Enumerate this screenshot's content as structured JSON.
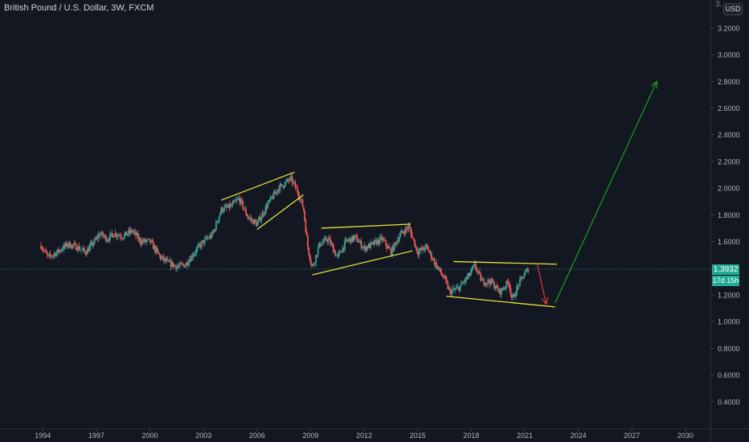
{
  "header": {
    "title": "British Pound / U.S. Dollar, 3W, FXCM",
    "currency_button": "USD"
  },
  "price_axis": {
    "top_clipped_label": "3.",
    "current_price": "1.3932",
    "countdown": "17d 15h"
  },
  "colors": {
    "background": "#131722",
    "up": "#26a69a",
    "down": "#ef5350",
    "channel": "#e8e337",
    "projection_up": "#1aa31a",
    "projection_down": "#e53935",
    "price_line": "#26a69a",
    "axis_text": "#b2b5be"
  },
  "chart_data": {
    "type": "candlestick",
    "symbol": "British Pound / U.S. Dollar",
    "interval": "3W",
    "source": "FXCM",
    "x_tick_labels": [
      "1994",
      "1997",
      "2000",
      "2003",
      "2006",
      "2009",
      "2012",
      "2015",
      "2018",
      "2021",
      "2024",
      "2027",
      "2030"
    ],
    "x_ticks": [
      1994,
      1997,
      2000,
      2003,
      2006,
      2009,
      2012,
      2015,
      2018,
      2021,
      2024,
      2027,
      2030
    ],
    "y_tick_labels": [
      "3.2000",
      "3.0000",
      "2.8000",
      "2.6000",
      "2.4000",
      "2.2000",
      "2.0000",
      "1.8000",
      "1.6000",
      "1.2000",
      "1.0000",
      "0.8000",
      "0.6000",
      "0.4000"
    ],
    "y_ticks": [
      3.2,
      3.0,
      2.8,
      2.6,
      2.4,
      2.2,
      2.0,
      1.8,
      1.6,
      1.2,
      1.0,
      0.8,
      0.6,
      0.4
    ],
    "xlim": [
      1991.6,
      2031.4
    ],
    "ylim": [
      0.2,
      3.41
    ],
    "last_price": 1.3932,
    "price_path": [
      [
        1993.9,
        1.57
      ],
      [
        1994.3,
        1.48
      ],
      [
        1994.8,
        1.52
      ],
      [
        1995.4,
        1.58
      ],
      [
        1995.9,
        1.56
      ],
      [
        1996.4,
        1.52
      ],
      [
        1996.9,
        1.6
      ],
      [
        1997.2,
        1.66
      ],
      [
        1997.6,
        1.62
      ],
      [
        1998.0,
        1.66
      ],
      [
        1998.5,
        1.64
      ],
      [
        1999.0,
        1.68
      ],
      [
        1999.5,
        1.6
      ],
      [
        2000.0,
        1.6
      ],
      [
        2000.6,
        1.48
      ],
      [
        2001.0,
        1.44
      ],
      [
        2001.6,
        1.41
      ],
      [
        2002.0,
        1.43
      ],
      [
        2002.5,
        1.52
      ],
      [
        2003.0,
        1.6
      ],
      [
        2003.5,
        1.65
      ],
      [
        2004.0,
        1.84
      ],
      [
        2004.5,
        1.86
      ],
      [
        2005.0,
        1.92
      ],
      [
        2005.5,
        1.78
      ],
      [
        2006.0,
        1.73
      ],
      [
        2006.6,
        1.88
      ],
      [
        2007.2,
        2.0
      ],
      [
        2007.9,
        2.07
      ],
      [
        2008.3,
        1.97
      ],
      [
        2008.6,
        1.85
      ],
      [
        2008.85,
        1.55
      ],
      [
        2009.1,
        1.4
      ],
      [
        2009.5,
        1.58
      ],
      [
        2010.0,
        1.62
      ],
      [
        2010.5,
        1.48
      ],
      [
        2011.0,
        1.6
      ],
      [
        2011.5,
        1.63
      ],
      [
        2012.0,
        1.55
      ],
      [
        2012.5,
        1.58
      ],
      [
        2013.0,
        1.62
      ],
      [
        2013.5,
        1.52
      ],
      [
        2014.0,
        1.65
      ],
      [
        2014.5,
        1.71
      ],
      [
        2015.0,
        1.52
      ],
      [
        2015.5,
        1.56
      ],
      [
        2016.0,
        1.43
      ],
      [
        2016.5,
        1.32
      ],
      [
        2016.8,
        1.22
      ],
      [
        2017.3,
        1.25
      ],
      [
        2017.9,
        1.35
      ],
      [
        2018.2,
        1.42
      ],
      [
        2018.6,
        1.3
      ],
      [
        2019.1,
        1.3
      ],
      [
        2019.6,
        1.22
      ],
      [
        2020.1,
        1.3
      ],
      [
        2020.3,
        1.16
      ],
      [
        2020.7,
        1.29
      ],
      [
        2021.0,
        1.36
      ],
      [
        2021.2,
        1.3932
      ]
    ],
    "trendlines": [
      {
        "name": "channel-2004-upper",
        "color": "yellow",
        "points": [
          [
            2004.0,
            1.91
          ],
          [
            2008.1,
            2.12
          ]
        ]
      },
      {
        "name": "channel-2004-lower",
        "color": "yellow",
        "points": [
          [
            2006.0,
            1.69
          ],
          [
            2008.6,
            1.95
          ]
        ]
      },
      {
        "name": "channel-2009-upper",
        "color": "yellow",
        "points": [
          [
            2009.6,
            1.7
          ],
          [
            2014.6,
            1.73
          ]
        ]
      },
      {
        "name": "channel-2009-lower",
        "color": "yellow",
        "points": [
          [
            2009.1,
            1.35
          ],
          [
            2014.7,
            1.53
          ]
        ]
      },
      {
        "name": "channel-2016-upper",
        "color": "yellow",
        "points": [
          [
            2017.0,
            1.45
          ],
          [
            2022.8,
            1.43
          ]
        ]
      },
      {
        "name": "channel-2016-lower",
        "color": "yellow",
        "points": [
          [
            2016.6,
            1.19
          ],
          [
            2022.7,
            1.11
          ]
        ]
      }
    ],
    "arrows": [
      {
        "name": "projection-down",
        "color": "red",
        "points": [
          [
            2021.7,
            1.43
          ],
          [
            2022.2,
            1.13
          ]
        ]
      },
      {
        "name": "projection-up",
        "color": "green",
        "points": [
          [
            2022.7,
            1.14
          ],
          [
            2028.4,
            2.8
          ]
        ]
      }
    ]
  }
}
